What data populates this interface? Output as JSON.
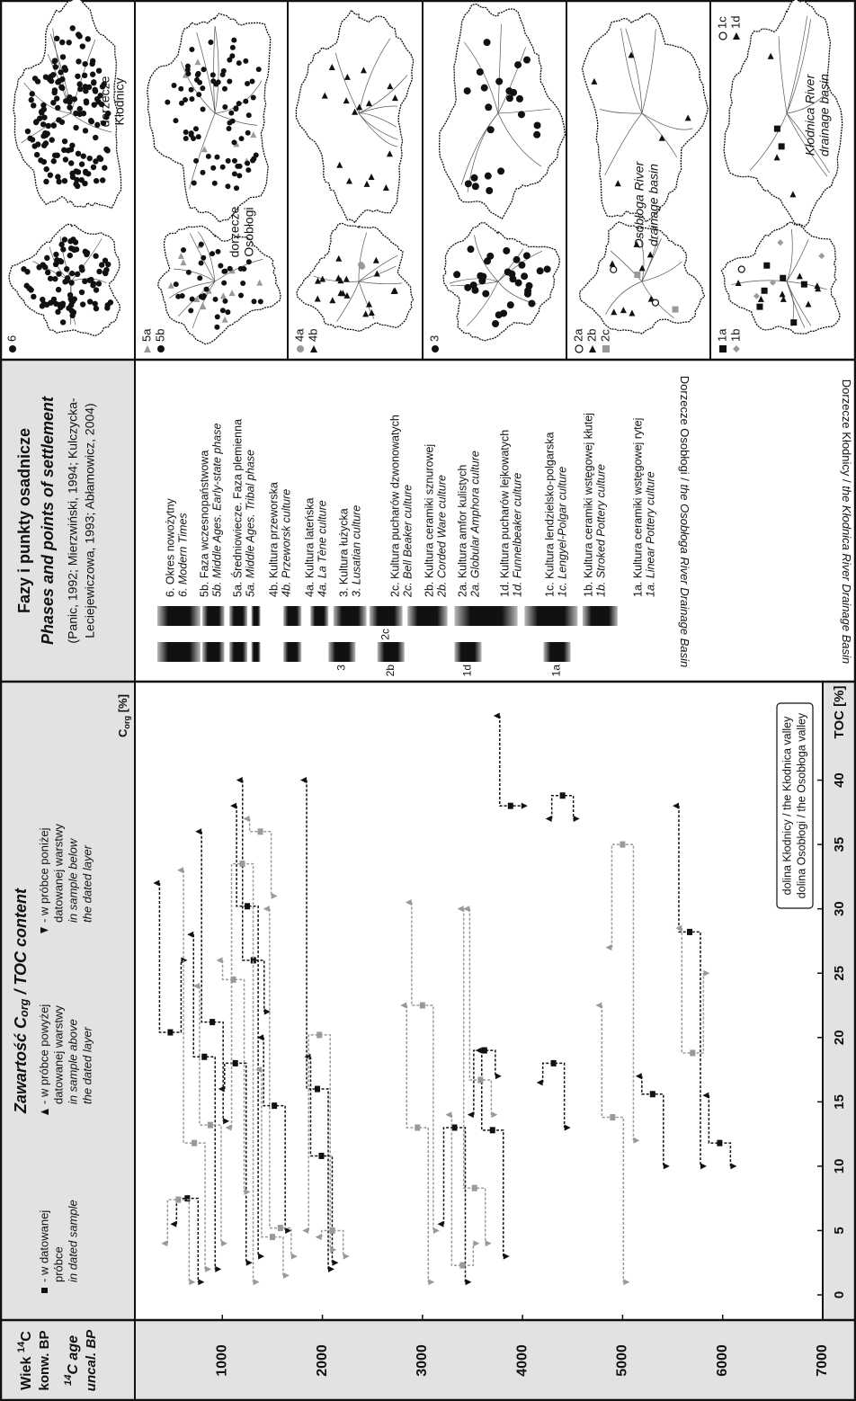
{
  "age_header": {
    "line1": [
      "Wiek ",
      "14",
      "C"
    ],
    "line2": "konw. BP",
    "line3": [
      "14",
      "C age"
    ],
    "line4": "uncal. BP"
  },
  "chart_data": {
    "type": "scatter",
    "title": [
      "Zawartość C",
      "org",
      " / TOC content"
    ],
    "legend": [
      {
        "pl": [
          "- w datowanej",
          "próbce"
        ],
        "en": [
          "in dated sample"
        ]
      },
      {
        "pl": [
          "- w próbce powyżej",
          "datowanej warstwy"
        ],
        "en": [
          "in sample above",
          "the dated layer"
        ]
      },
      {
        "pl": [
          "- w próbce poniżej",
          "datowanej warstwy"
        ],
        "en": [
          "in sample below",
          "the dated layer"
        ]
      }
    ],
    "xlabel_top": [
      "C",
      "org",
      " [%]"
    ],
    "xlabel": "TOC [%]",
    "xlim": [
      0,
      45
    ],
    "xticks": [
      0,
      5,
      10,
      15,
      20,
      25,
      30,
      35,
      40
    ],
    "ylim": [
      0,
      7000
    ],
    "yticks": [
      1000,
      2000,
      3000,
      4000,
      5000,
      6000,
      7000
    ],
    "series": [
      {
        "name": "dolina Kłodnicy / the Kłodnica valley",
        "color": "#111111",
        "values": [
          480,
          650,
          820,
          900,
          1130,
          1250,
          1310,
          1520,
          1950,
          1990,
          3320,
          3620,
          3700,
          3880,
          4310,
          4400,
          5300,
          5670,
          5970
        ],
        "x": [
          20.4,
          7.5,
          18.5,
          21.2,
          18,
          30.2,
          26,
          14.7,
          16,
          10.8,
          13,
          19,
          12.8,
          38,
          18,
          38.8,
          15.6,
          28.2,
          11.8
        ],
        "above": [
          32,
          5.5,
          28,
          36,
          16,
          38,
          40,
          20,
          40,
          18.5,
          5.5,
          14,
          19,
          45,
          16.5,
          37,
          17,
          38,
          15.5
        ],
        "below": [
          26,
          1,
          2,
          13.5,
          2.5,
          3,
          22,
          5,
          2,
          2.5,
          1,
          17,
          3,
          38,
          13,
          37,
          10,
          10,
          10
        ]
      },
      {
        "name": "dolina Osobłogi / the Osobłoga valley",
        "color": "#999999",
        "values": [
          560,
          720,
          880,
          1110,
          1200,
          1380,
          1500,
          1580,
          1970,
          2100,
          2950,
          3000,
          3400,
          3520,
          3580,
          4900,
          5000,
          5700
        ],
        "x": [
          7.4,
          11.8,
          13.2,
          24.5,
          33.5,
          36,
          4.5,
          5.2,
          20.2,
          5,
          13,
          22.5,
          2.3,
          8.3,
          16.7,
          13.8,
          35,
          18.8
        ],
        "above": [
          4,
          33,
          24,
          26,
          13,
          37,
          17.5,
          30,
          5,
          4.5,
          22.5,
          30.5,
          14,
          30,
          30,
          22.5,
          27,
          28.5
        ],
        "below": [
          1,
          2,
          4,
          8,
          1,
          31,
          1.5,
          3,
          3.5,
          3,
          1,
          5,
          4,
          4,
          14,
          1,
          12,
          25
        ]
      }
    ]
  },
  "phases": {
    "title": "Fazy i punkty osadnicze",
    "subtitle": "Phases and points of settlement",
    "refs": [
      "(Panic, 1992; Mierzwiński, 1994; Kulczycka-",
      "Leciejewiczowa, 1993; Abłamowicz, 2004)"
    ],
    "items": [
      {
        "pl": "6. Okres nowożytny",
        "en": "6. Modern Times"
      },
      {
        "pl": "5b. Faza wczesnopaństwowa",
        "en": "5b. Middle Ages. Early-state phase"
      },
      {
        "pl": "5a. Średniowiecze. Faza plemienna",
        "en": "5a. Middle Ages. Tribal phase"
      },
      {
        "pl": "4b. Kultura przeworska",
        "en": "4b. Przeworsk culture"
      },
      {
        "pl": "4a. Kultura lateńska",
        "en": "4a. La Tène culture"
      },
      {
        "pl": "3. Kultura łużycka",
        "en": "3. Lusatian culture"
      },
      {
        "pl": "2c. Kultura pucharów dzwonowatych",
        "en": "2c. Bell Beaker culture"
      },
      {
        "pl": "2b. Kultura ceramiki sznurowej",
        "en": "2b. Corded Ware culture"
      },
      {
        "pl": "2a. Kultura amfor kulistych",
        "en": "2a. Globular Amphora culture"
      },
      {
        "pl": "1d. Kultura pucharów lejkowatych",
        "en": "1d. Funnelbeaker culture"
      },
      {
        "pl": "1c. Kultura lendzielsko-polgarska",
        "en": "1c. Lengyel-Polgar culture"
      },
      {
        "pl": "1b. Kultura ceramiki wstęgowej kłutej",
        "en": "1b. Stroked Pottery culture"
      },
      {
        "pl": "1a. Kultura ceramiki wstęgowej rytej",
        "en": "1a. Linear Pottery culture"
      }
    ],
    "basins": [
      {
        "label": [
          "Dorzecze Kłodnicy / ",
          "the Kłodnica River Drainage Basin"
        ],
        "bars": [
          {
            "label": null,
            "from": 350,
            "to": 780
          },
          {
            "label": null,
            "from": 800,
            "to": 1020
          },
          {
            "label": null,
            "from": 1070,
            "to": 1250
          },
          {
            "label": null,
            "from": 1290,
            "to": 1380
          },
          {
            "label": null,
            "from": 1610,
            "to": 1790
          },
          {
            "label": "3",
            "from": 2060,
            "to": 2330
          },
          {
            "label": "2b",
            "from": 2550,
            "to": 2820
          },
          {
            "label": "1d",
            "from": 3320,
            "to": 3590
          },
          {
            "label": "1a",
            "from": 4210,
            "to": 4480
          }
        ]
      },
      {
        "label": [
          "Dorzecze Osobłogi / ",
          "the Osobłoga River Drainage Basin"
        ],
        "bars": [
          {
            "label": null,
            "from": 350,
            "to": 780
          },
          {
            "label": null,
            "from": 800,
            "to": 1020
          },
          {
            "label": null,
            "from": 1070,
            "to": 1250
          },
          {
            "label": null,
            "from": 1290,
            "to": 1380
          },
          {
            "label": null,
            "from": 1610,
            "to": 1790
          },
          {
            "label": null,
            "from": 1880,
            "to": 2060
          },
          {
            "label": null,
            "from": 2110,
            "to": 2440
          },
          {
            "label": "2c",
            "from": 2470,
            "to": 2800
          },
          {
            "label": null,
            "from": 2850,
            "to": 3250
          },
          {
            "label": null,
            "from": 3320,
            "to": 3950
          },
          {
            "label": null,
            "from": 4020,
            "to": 4550
          },
          {
            "label": null,
            "from": 4600,
            "to": 4950
          }
        ]
      }
    ]
  },
  "maps": {
    "rows": [
      {
        "legend": [
          "6"
        ],
        "labels": [
          "dorzecze",
          "Kłodnicy"
        ]
      },
      {
        "legend": [
          "5a",
          "5b"
        ],
        "labels": [
          "dorzecze",
          "Osobłogi"
        ]
      },
      {
        "legend": [
          "4a",
          "4b"
        ]
      },
      {
        "legend": [
          "3"
        ]
      },
      {
        "legend": [
          "2a",
          "2b",
          "2c"
        ],
        "labels": [
          "Osobłoga River",
          "drainage basin"
        ]
      },
      {
        "legend": [
          "1a",
          "1b"
        ],
        "legend_right": [
          "1c",
          "1d"
        ],
        "labels": [
          "Kłodnica River",
          "drainage basin"
        ]
      }
    ]
  }
}
